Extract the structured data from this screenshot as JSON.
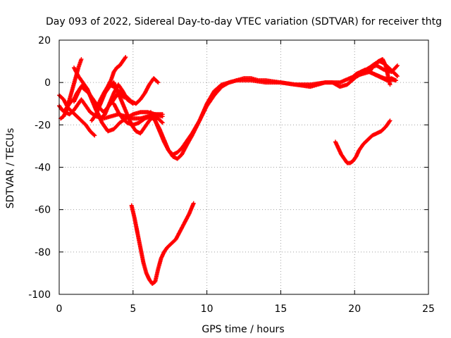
{
  "chart_data": {
    "type": "scatter",
    "title": "Day 093 of 2022, Sidereal Day-to-day VTEC variation (SDTVAR) for receiver thtg",
    "xlabel": "GPS time / hours",
    "ylabel": "SDTVAR / TECUs",
    "xlim": [
      0,
      25
    ],
    "ylim": [
      -100,
      20
    ],
    "x_ticks": [
      "0",
      "5",
      "10",
      "15",
      "20",
      "25"
    ],
    "y_ticks": [
      "-100",
      "-80",
      "-60",
      "-40",
      "-20",
      "0",
      "20"
    ],
    "grid": true,
    "marker": "plus",
    "color": "#ff0000",
    "series": [
      {
        "x": [
          0.0,
          0.3,
          0.6,
          0.9,
          1.2,
          1.5,
          1.8,
          2.1,
          2.4
        ],
        "y": [
          -6,
          -8,
          -12,
          -14,
          -16,
          -18,
          -20,
          -23,
          -25
        ]
      },
      {
        "x": [
          0.0,
          0.2,
          0.4,
          0.7,
          1.0,
          1.3,
          1.5,
          1.8,
          2.1,
          2.5,
          3.0,
          3.5,
          4.0,
          4.5,
          5.0,
          5.5,
          6.0,
          6.5,
          7.0
        ],
        "y": [
          -11,
          -13,
          -14,
          -15,
          -13,
          -10,
          -8,
          -11,
          -14,
          -16,
          -17,
          -16,
          -15,
          -16,
          -17,
          -17,
          -16,
          -15,
          -16
        ]
      },
      {
        "x": [
          0.1,
          0.3,
          0.5,
          0.7,
          0.9,
          1.1,
          1.3,
          1.5
        ],
        "y": [
          -17,
          -16,
          -13,
          -8,
          -3,
          2,
          7,
          11
        ]
      },
      {
        "x": [
          0.4,
          0.6,
          0.8,
          1.0,
          1.2,
          1.5,
          2.0,
          2.5,
          3.0,
          3.5,
          4.0,
          4.4
        ],
        "y": [
          -13,
          -11,
          -9,
          -8,
          -5,
          -2,
          -5,
          -10,
          -14,
          -10,
          -5,
          -7
        ]
      },
      {
        "x": [
          1.0,
          1.2,
          1.4,
          1.6,
          1.9,
          2.2,
          2.5,
          2.9,
          3.3,
          3.7,
          4.1,
          4.5,
          5.0,
          5.5,
          6.0,
          6.5,
          7.0
        ],
        "y": [
          -9,
          -6,
          -3,
          -1,
          -3,
          -8,
          -13,
          -19,
          -23,
          -22,
          -19,
          -17,
          -15,
          -14,
          -14,
          -15,
          -15
        ]
      },
      {
        "x": [
          1.0,
          1.3,
          1.6,
          1.9,
          2.2,
          2.5,
          2.8,
          3.1,
          3.4,
          3.7,
          4.0,
          4.3,
          4.6,
          5.0
        ],
        "y": [
          7,
          3,
          0,
          -3,
          -8,
          -13,
          -17,
          -15,
          -10,
          -5,
          -1,
          -4,
          -8,
          -10
        ]
      },
      {
        "x": [
          2.2,
          2.5,
          2.8,
          3.1,
          3.4,
          3.7,
          4.0,
          4.3,
          4.6,
          4.9,
          5.2,
          5.5,
          5.8,
          6.1,
          6.4,
          6.7,
          7.0
        ],
        "y": [
          -18,
          -15,
          -10,
          -5,
          -2,
          0,
          -5,
          -10,
          -15,
          -20,
          -23,
          -24,
          -21,
          -18,
          -16,
          -17,
          -19
        ]
      },
      {
        "x": [
          2.5,
          2.8,
          3.1,
          3.4,
          3.7,
          4.0,
          4.3,
          4.6,
          4.9,
          5.2,
          5.5,
          5.8,
          6.1,
          6.4,
          6.7
        ],
        "y": [
          -13,
          -8,
          -4,
          -1,
          -2,
          -4,
          -5,
          -7,
          -9,
          -10,
          -8,
          -5,
          -1,
          2,
          0
        ]
      },
      {
        "x": [
          3.2,
          3.5,
          3.7,
          3.9,
          4.1,
          4.3,
          4.5
        ],
        "y": [
          -3,
          1,
          5,
          7,
          8,
          10,
          12
        ]
      },
      {
        "x": [
          3.7,
          4.0,
          4.3,
          4.6,
          5.0,
          5.4,
          5.8,
          6.2,
          6.5,
          6.8,
          7.1,
          7.4,
          7.7,
          8.0,
          8.3,
          8.6,
          9.0,
          9.5,
          10.0,
          10.5,
          11.0,
          12.0,
          13.0,
          14.0,
          15.0,
          16.0,
          17.0,
          18.0,
          19.0,
          20.0,
          21.0,
          22.0,
          22.8
        ],
        "y": [
          -10,
          -14,
          -17,
          -19,
          -20,
          -19,
          -17,
          -16,
          -18,
          -22,
          -27,
          -32,
          -35,
          -36,
          -34,
          -30,
          -25,
          -18,
          -10,
          -4,
          -1,
          1,
          1,
          0,
          0,
          -1,
          -1,
          0,
          0,
          3,
          5,
          2,
          1
        ]
      },
      {
        "x": [
          6.2,
          6.5,
          6.8,
          7.1,
          7.4,
          7.7,
          8.0,
          8.3,
          8.6,
          9.0,
          9.5,
          10.0,
          10.5,
          11.0,
          11.5,
          12.0,
          12.5,
          13.0,
          13.5,
          14.0,
          15.0,
          16.0,
          17.0,
          17.5,
          18.0,
          18.5,
          19.0,
          19.5,
          20.0,
          20.5,
          21.0,
          21.5,
          22.0,
          22.5,
          22.9
        ],
        "y": [
          -14,
          -18,
          -23,
          -28,
          -32,
          -34,
          -33,
          -31,
          -28,
          -24,
          -18,
          -11,
          -6,
          -2,
          0,
          1,
          2,
          2,
          1,
          1,
          0,
          -1,
          -2,
          -1,
          0,
          0,
          -2,
          -1,
          2,
          5,
          7,
          8,
          6,
          5,
          8
        ]
      },
      {
        "x": [
          4.9,
          5.1,
          5.3,
          5.5,
          5.7,
          5.9,
          6.1,
          6.3,
          6.5,
          6.7,
          6.9,
          7.1,
          7.3,
          7.6,
          7.9,
          8.2,
          8.5,
          8.8,
          9.1
        ],
        "y": [
          -58,
          -64,
          -71,
          -78,
          -85,
          -90,
          -93,
          -95,
          -94,
          -88,
          -83,
          -80,
          -78,
          -76,
          -74,
          -70,
          -66,
          -62,
          -57
        ]
      },
      {
        "x": [
          18.7,
          18.9,
          19.1,
          19.3,
          19.5,
          19.7,
          19.9,
          20.1,
          20.3,
          20.6,
          20.9,
          21.2,
          21.5,
          21.8,
          22.1,
          22.4
        ],
        "y": [
          -28,
          -31,
          -34,
          -36,
          -38,
          -38,
          -37,
          -35,
          -32,
          -29,
          -27,
          -25,
          -24,
          -23,
          -21,
          -18
        ]
      },
      {
        "x": [
          19.8,
          20.1,
          20.4,
          20.7,
          21.0,
          21.3,
          21.6,
          21.9,
          22.2,
          22.5,
          22.8
        ],
        "y": [
          2,
          4,
          5,
          6,
          5,
          4,
          3,
          2,
          1,
          2,
          1
        ]
      },
      {
        "x": [
          20.2,
          20.6,
          21.0,
          21.4,
          21.7,
          22.0,
          22.3,
          22.6,
          22.9
        ],
        "y": [
          3,
          5,
          7,
          9,
          10,
          9,
          7,
          5,
          3
        ]
      },
      {
        "x": [
          21.0,
          21.3,
          21.6,
          21.9,
          22.1,
          22.4
        ],
        "y": [
          5,
          8,
          10,
          11,
          8,
          -1
        ]
      }
    ]
  }
}
